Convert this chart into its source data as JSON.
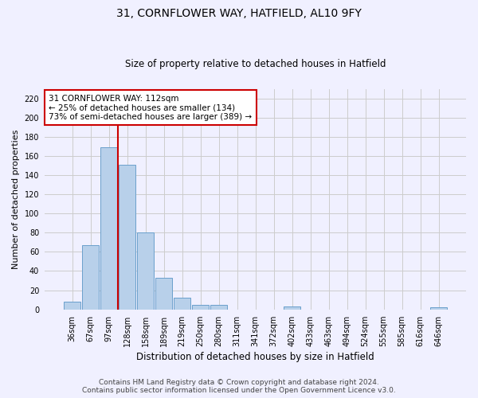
{
  "title": "31, CORNFLOWER WAY, HATFIELD, AL10 9FY",
  "subtitle": "Size of property relative to detached houses in Hatfield",
  "xlabel": "Distribution of detached houses by size in Hatfield",
  "ylabel": "Number of detached properties",
  "categories": [
    "36sqm",
    "67sqm",
    "97sqm",
    "128sqm",
    "158sqm",
    "189sqm",
    "219sqm",
    "250sqm",
    "280sqm",
    "311sqm",
    "341sqm",
    "372sqm",
    "402sqm",
    "433sqm",
    "463sqm",
    "494sqm",
    "524sqm",
    "555sqm",
    "585sqm",
    "616sqm",
    "646sqm"
  ],
  "values": [
    8,
    67,
    169,
    151,
    80,
    33,
    12,
    5,
    5,
    0,
    0,
    0,
    3,
    0,
    0,
    0,
    0,
    0,
    0,
    0,
    2
  ],
  "bar_color": "#b8d0ea",
  "bar_edge_color": "#6aa0cc",
  "grid_color": "#cccccc",
  "background_color": "#f0f0ff",
  "vline_color": "#cc0000",
  "annotation_text": "31 CORNFLOWER WAY: 112sqm\n← 25% of detached houses are smaller (134)\n73% of semi-detached houses are larger (389) →",
  "annotation_box_facecolor": "#ffffff",
  "annotation_box_edge": "#cc0000",
  "ylim": [
    0,
    230
  ],
  "yticks": [
    0,
    20,
    40,
    60,
    80,
    100,
    120,
    140,
    160,
    180,
    200,
    220
  ],
  "footer": "Contains HM Land Registry data © Crown copyright and database right 2024.\nContains public sector information licensed under the Open Government Licence v3.0.",
  "title_fontsize": 10,
  "subtitle_fontsize": 8.5,
  "ylabel_fontsize": 8,
  "xlabel_fontsize": 8.5,
  "tick_fontsize": 7,
  "footer_fontsize": 6.5,
  "annotation_fontsize": 7.5,
  "bar_width": 0.9
}
